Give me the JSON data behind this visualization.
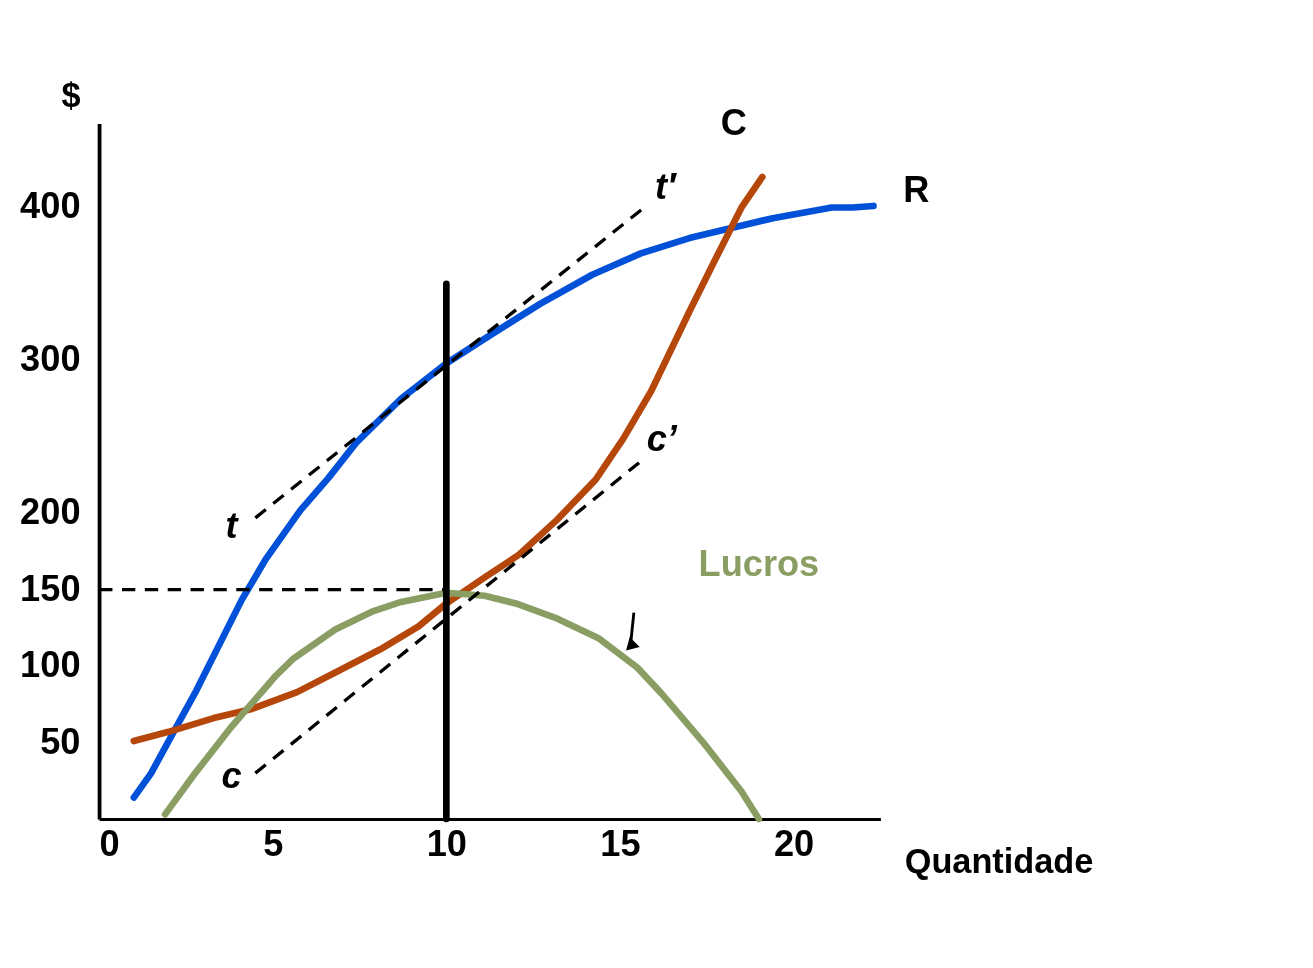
{
  "chart_data": {
    "type": "line",
    "xlabel": "Quantidade",
    "ylabel": "$",
    "xlim": [
      0,
      22.5
    ],
    "ylim": [
      0,
      455
    ],
    "xticks": [
      0,
      5,
      10,
      15,
      20
    ],
    "yticks": [
      50,
      100,
      150,
      200,
      300,
      400
    ],
    "grid": false,
    "marker": "none",
    "series": [
      {
        "name": "R",
        "color": "#0050d8",
        "line_style": "solid",
        "x": [
          1.0,
          1.5,
          2.1,
          2.8,
          4.1,
          4.8,
          5.8,
          6.6,
          7.4,
          8.7,
          10,
          11.3,
          12.7,
          14.2,
          15.6,
          17,
          18.3,
          19.4,
          21.1,
          21.7,
          22.3
        ],
        "values": [
          14,
          30,
          55,
          84,
          143,
          170,
          202,
          223,
          246,
          275,
          298,
          317,
          337,
          356,
          370,
          380,
          387,
          393,
          400,
          400,
          401
        ]
      },
      {
        "name": "C",
        "color": "#b5470b",
        "line_style": "solid",
        "x": [
          1.0,
          2.0,
          3.3,
          4.4,
          5.7,
          6.9,
          8.1,
          9.2,
          10,
          11.1,
          12.1,
          13.2,
          14.3,
          15.1,
          15.9,
          17,
          17.7,
          18.5,
          19.1
        ],
        "values": [
          51,
          57,
          66,
          72,
          83,
          97,
          111,
          126,
          141,
          158,
          173,
          196,
          222,
          249,
          280,
          332,
          364,
          400,
          420
        ]
      },
      {
        "name": "Lucros",
        "color": "#8a9e64",
        "line_style": "solid",
        "x": [
          1.9,
          2.7,
          3.8,
          5.1,
          5.6,
          6.8,
          7.9,
          8.7,
          10,
          11.1,
          12,
          13.2,
          14.4,
          15.5,
          16.2,
          17.4,
          18.5,
          19.0
        ],
        "values": [
          3,
          28,
          60,
          94,
          105,
          124,
          136,
          142,
          148,
          146,
          141,
          131,
          118,
          99,
          82,
          50,
          18,
          0
        ]
      },
      {
        "color": "#000000",
        "line_style": "dashed",
        "x": [
          4.5,
          15.7
        ],
        "values": [
          197,
          400
        ]
      },
      {
        "color": "#000000",
        "line_style": "dashed",
        "x": [
          4.5,
          15.6
        ],
        "values": [
          30,
          234
        ]
      },
      {
        "color": "#000000",
        "line_style": "dashed",
        "x": [
          0,
          10
        ],
        "values": [
          150,
          150
        ]
      },
      {
        "color": "#000000",
        "line_style": "solid",
        "x": [
          10,
          10
        ],
        "values": [
          0,
          350
        ]
      }
    ],
    "annotations": [
      {
        "text": "t",
        "x": 4.5,
        "y": 197
      },
      {
        "text": "t′",
        "x": 15.7,
        "y": 400
      },
      {
        "text": "c",
        "x": 4.5,
        "y": 30
      },
      {
        "text": "c’",
        "x": 15.6,
        "y": 234
      }
    ]
  }
}
